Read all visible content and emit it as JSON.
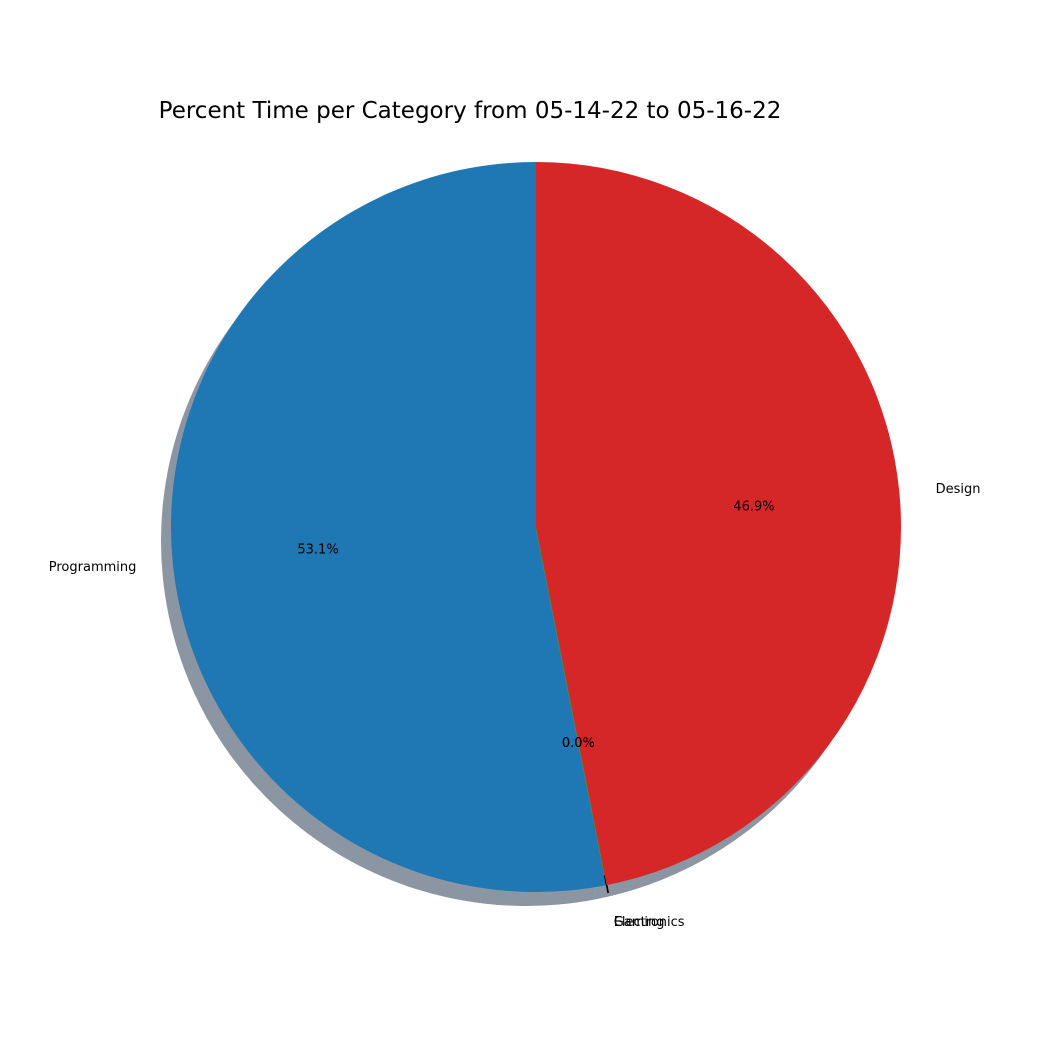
{
  "chart_data": {
    "type": "pie",
    "title": "Percent Time per Category from 05-14-22 to 05-16-22",
    "start_angle_deg": 90,
    "direction": "counterclockwise",
    "shadow": true,
    "slices": [
      {
        "label": "Programming",
        "value": 53.1,
        "pct_label": "53.1%",
        "color": "#1f77b4"
      },
      {
        "label": "Electronics",
        "value": 0.0,
        "pct_label": "0.0%",
        "color": "#ff7f0e"
      },
      {
        "label": "Gaming",
        "value": 0.0,
        "pct_label": "0.0%",
        "color": "#2ca02c"
      },
      {
        "label": "Design",
        "value": 46.9,
        "pct_label": "46.9%",
        "color": "#d62728"
      }
    ]
  }
}
